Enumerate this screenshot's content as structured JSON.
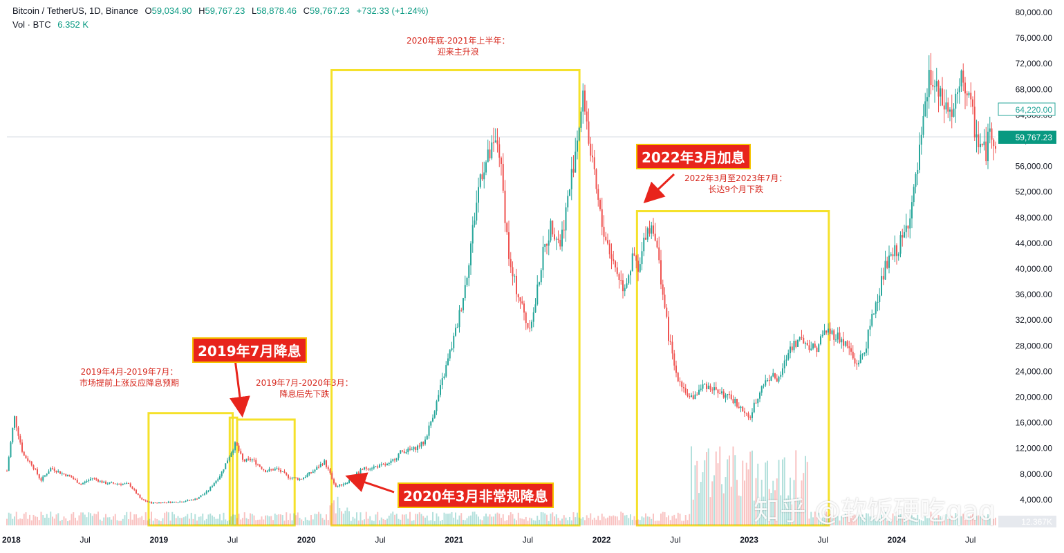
{
  "header": {
    "symbol": "Bitcoin / TetherUS, 1D, Binance",
    "o_label": "O",
    "o_value": "59,034.90",
    "h_label": "H",
    "h_value": "59,767.23",
    "l_label": "L",
    "l_value": "58,878.46",
    "c_label": "C",
    "c_value": "59,767.23",
    "change": "+732.33 (+1.24%)",
    "vol_label": "Vol · BTC",
    "vol_value": "6.352 K"
  },
  "colors": {
    "up": "#26a69a",
    "down": "#ef5350",
    "box": "#f5e12a",
    "annotation": "#e8241c",
    "last_price": "#089981"
  },
  "price_labels": {
    "last": "59,767.23",
    "marker": "64,220.00",
    "volume": "12.367K"
  },
  "annotations": {
    "cut_2019": "2019年7月降息",
    "note_2019a": "2019年4月-2019年7月：\n市场提前上涨反应降息预期",
    "note_2019b": "2019年7月-2020年3月：\n降息后先下跌",
    "note_2020": "2020年底-2021年上半年：\n迎来主升浪",
    "cut_2020": "2020年3月非常规降息",
    "hike_2022": "2022年3月加息",
    "note_2022": "2022年3月至2023年7月：\n长达9个月下跌"
  },
  "watermark": "知乎 @软饭硬吃qaq",
  "chart_data": {
    "type": "line",
    "title": "Bitcoin / TetherUS, 1D, Binance",
    "x_unit": "year",
    "x_ticks": [
      {
        "label": "2018",
        "x": 2018.0
      },
      {
        "label": "Jul",
        "x": 2018.5
      },
      {
        "label": "2019",
        "x": 2019.0
      },
      {
        "label": "Jul",
        "x": 2019.5
      },
      {
        "label": "2020",
        "x": 2020.0
      },
      {
        "label": "Jul",
        "x": 2020.5
      },
      {
        "label": "2021",
        "x": 2021.0
      },
      {
        "label": "Jul",
        "x": 2021.5
      },
      {
        "label": "2022",
        "x": 2022.0
      },
      {
        "label": "Jul",
        "x": 2022.5
      },
      {
        "label": "2023",
        "x": 2023.0
      },
      {
        "label": "Jul",
        "x": 2023.5
      },
      {
        "label": "2024",
        "x": 2024.0
      },
      {
        "label": "Jul",
        "x": 2024.5
      }
    ],
    "y_ticks": [
      "80,000.00",
      "76,000.00",
      "72,000.00",
      "68,000.00",
      "64,000.00",
      "60,000.00",
      "56,000.00",
      "52,000.00",
      "48,000.00",
      "44,000.00",
      "40,000.00",
      "36,000.00",
      "32,000.00",
      "28,000.00",
      "24,000.00",
      "20,000.00",
      "16,000.00",
      "12,000.00",
      "8,000.00",
      "4,000.00",
      "0.00"
    ],
    "y_tick_values": [
      80000,
      76000,
      72000,
      68000,
      64000,
      60000,
      56000,
      52000,
      48000,
      44000,
      40000,
      36000,
      32000,
      28000,
      24000,
      20000,
      16000,
      12000,
      8000,
      4000,
      0
    ],
    "ylim": [
      0,
      80000
    ],
    "xlim": [
      2017.97,
      2024.67
    ],
    "series": [
      {
        "x": [
          2017.97,
          2018.02,
          2018.08,
          2018.14,
          2018.2,
          2018.27,
          2018.33,
          2018.4,
          2018.47,
          2018.55,
          2018.63,
          2018.72,
          2018.8,
          2018.88,
          2018.95,
          2019.05,
          2019.15,
          2019.25,
          2019.33,
          2019.42,
          2019.48,
          2019.52,
          2019.57,
          2019.63,
          2019.72,
          2019.8,
          2019.88,
          2019.96,
          2020.05,
          2020.12,
          2020.2,
          2020.28,
          2020.38,
          2020.48,
          2020.56,
          2020.64,
          2020.72,
          2020.8,
          2020.88,
          2020.95,
          2021.02,
          2021.08,
          2021.12,
          2021.18,
          2021.25,
          2021.3,
          2021.38,
          2021.45,
          2021.5,
          2021.54,
          2021.6,
          2021.66,
          2021.72,
          2021.78,
          2021.85,
          2021.88,
          2021.93,
          2022.0,
          2022.08,
          2022.15,
          2022.22,
          2022.25,
          2022.3,
          2022.35,
          2022.4,
          2022.45,
          2022.5,
          2022.6,
          2022.7,
          2022.78,
          2022.85,
          2022.9,
          2023.0,
          2023.08,
          2023.15,
          2023.2,
          2023.28,
          2023.35,
          2023.45,
          2023.52,
          2023.6,
          2023.68,
          2023.72,
          2023.78,
          2023.85,
          2023.92,
          2024.0,
          2024.05,
          2024.12,
          2024.18,
          2024.22,
          2024.3,
          2024.38,
          2024.45,
          2024.5,
          2024.55,
          2024.6,
          2024.64,
          2024.67
        ],
        "y": [
          8500,
          17000,
          11000,
          9500,
          7000,
          9000,
          8200,
          7600,
          6400,
          7400,
          6600,
          6500,
          6400,
          4000,
          3500,
          3600,
          3700,
          4100,
          5300,
          8000,
          11000,
          12800,
          10000,
          10300,
          8500,
          8800,
          7500,
          7200,
          8500,
          10000,
          6000,
          6800,
          8800,
          9200,
          9500,
          11500,
          11800,
          13000,
          19000,
          25000,
          31000,
          38000,
          45000,
          55000,
          58000,
          60000,
          40000,
          35000,
          31000,
          33000,
          42000,
          47000,
          44000,
          52000,
          63000,
          67000,
          57000,
          47000,
          41000,
          37000,
          42000,
          39000,
          46000,
          47000,
          39000,
          30000,
          24000,
          19500,
          22000,
          21000,
          20000,
          19500,
          16500,
          21500,
          23500,
          22500,
          28000,
          29000,
          27500,
          30500,
          29500,
          27500,
          25000,
          27000,
          34000,
          40000,
          43000,
          45000,
          52000,
          62000,
          70000,
          66000,
          64000,
          70000,
          65000,
          60000,
          58000,
          62000,
          59767
        ]
      }
    ],
    "volume_note": "Vol · BTC"
  }
}
